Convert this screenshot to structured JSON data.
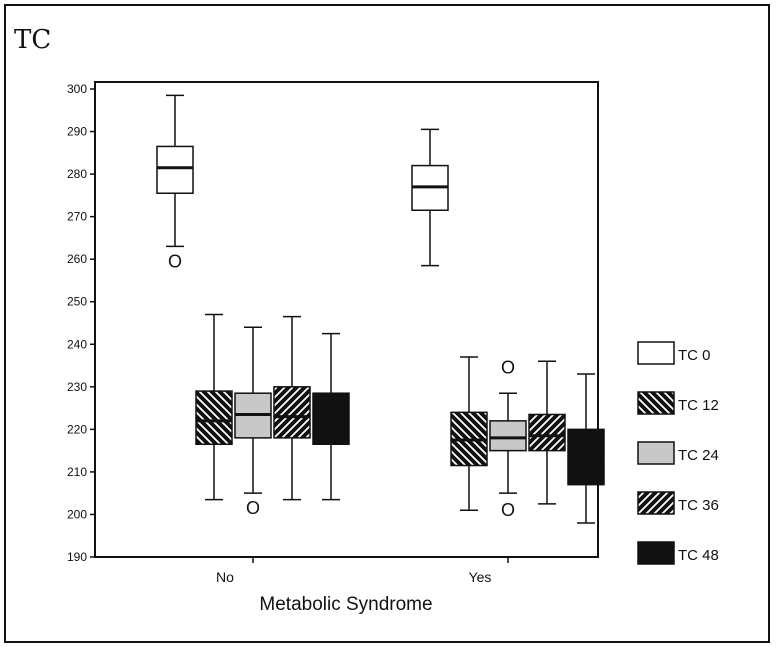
{
  "chart_data": {
    "type": "box",
    "title": "TC",
    "xlabel": "Metabolic Syndrome",
    "ylabel": "",
    "ylim": [
      190,
      300
    ],
    "yticks": [
      190,
      200,
      210,
      220,
      230,
      240,
      250,
      260,
      270,
      280,
      290,
      300
    ],
    "grid": false,
    "legend_position": "right",
    "categories": [
      "No",
      "Yes"
    ],
    "outlier_marker": "O",
    "series": [
      {
        "name": "TC 0",
        "pattern": "white",
        "boxes": [
          {
            "category": "No",
            "min": 263,
            "q1": 275.5,
            "median": 281.5,
            "q3": 286.5,
            "max": 298.5,
            "outliers": [
              259.5
            ]
          },
          {
            "category": "Yes",
            "min": 258.5,
            "q1": 271.5,
            "median": 277,
            "q3": 282,
            "max": 290.5,
            "outliers": []
          }
        ]
      },
      {
        "name": "TC 12",
        "pattern": "backslash-hatch",
        "boxes": [
          {
            "category": "No",
            "min": 203.5,
            "q1": 216.5,
            "median": 222,
            "q3": 229,
            "max": 247,
            "outliers": []
          },
          {
            "category": "Yes",
            "min": 201,
            "q1": 211.5,
            "median": 217.5,
            "q3": 224,
            "max": 237,
            "outliers": []
          }
        ]
      },
      {
        "name": "TC 24",
        "pattern": "gray",
        "boxes": [
          {
            "category": "No",
            "min": 205,
            "q1": 218,
            "median": 223.5,
            "q3": 228.5,
            "max": 244,
            "outliers": [
              201.5
            ]
          },
          {
            "category": "Yes",
            "min": 205,
            "q1": 215,
            "median": 218,
            "q3": 222,
            "max": 228.5,
            "outliers": [
              234.5,
              201
            ]
          }
        ]
      },
      {
        "name": "TC 36",
        "pattern": "slash-hatch",
        "boxes": [
          {
            "category": "No",
            "min": 203.5,
            "q1": 218,
            "median": 223,
            "q3": 230,
            "max": 246.5,
            "outliers": []
          },
          {
            "category": "Yes",
            "min": 202.5,
            "q1": 215,
            "median": 218.5,
            "q3": 223.5,
            "max": 236,
            "outliers": []
          }
        ]
      },
      {
        "name": "TC 48",
        "pattern": "black",
        "boxes": [
          {
            "category": "No",
            "min": 203.5,
            "q1": 216.5,
            "median": 222,
            "q3": 228.5,
            "max": 242.5,
            "outliers": []
          },
          {
            "category": "Yes",
            "min": 198,
            "q1": 207,
            "median": 212,
            "q3": 220,
            "max": 233,
            "outliers": []
          }
        ]
      }
    ]
  }
}
